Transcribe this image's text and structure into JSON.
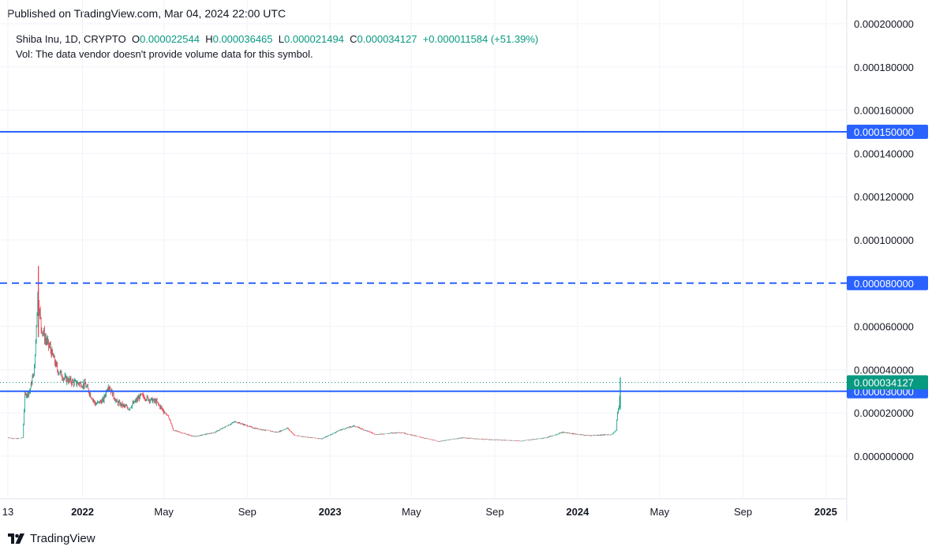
{
  "header": {
    "published": "Published on TradingView.com, Mar 04, 2024 22:00 UTC"
  },
  "legend": {
    "symbol": "Shiba Inu, 1D, CRYPTO",
    "o_label": "O",
    "o_value": "0.000022544",
    "h_label": "H",
    "h_value": "0.000036465",
    "l_label": "L",
    "l_value": "0.000021494",
    "c_label": "C",
    "c_value": "0.000034127",
    "change": "+0.000011584 (+51.39%)",
    "volume_note": "Vol: The data vendor doesn't provide volume data for this symbol."
  },
  "brand": {
    "name": "TradingView",
    "icon": "tradingview-logo-icon"
  },
  "colors": {
    "up": "#089981",
    "down": "#f23645",
    "level": "#2962ff",
    "grid": "#f0f3fa",
    "axis_text": "#131722"
  },
  "chart_data": {
    "type": "candlestick",
    "symbol": "Shiba Inu, 1D, CRYPTO",
    "x_range": [
      "2021-09-13",
      "2025-02-01"
    ],
    "x_ticks": [
      {
        "date": "2021-09-13",
        "label": "13"
      },
      {
        "date": "2022-01-01",
        "label": "2022"
      },
      {
        "date": "2022-05-01",
        "label": "May"
      },
      {
        "date": "2022-09-01",
        "label": "Sep"
      },
      {
        "date": "2023-01-01",
        "label": "2023"
      },
      {
        "date": "2023-05-01",
        "label": "May"
      },
      {
        "date": "2023-09-01",
        "label": "Sep"
      },
      {
        "date": "2024-01-01",
        "label": "2024"
      },
      {
        "date": "2024-05-01",
        "label": "May"
      },
      {
        "date": "2024-09-01",
        "label": "Sep"
      },
      {
        "date": "2025-01-01",
        "label": "2025"
      }
    ],
    "y_range": [
      -1.5e-05,
      0.0002
    ],
    "y_ticks": [
      0.0,
      2e-05,
      4e-05,
      6e-05,
      0.0001,
      0.00012,
      0.00014,
      0.00016,
      0.00018,
      0.0002
    ],
    "y_tick_labels": [
      "0.000000000",
      "0.000020000",
      "0.000040000",
      "0.000060000",
      "0.000100000",
      "0.000120000",
      "0.000140000",
      "0.000160000",
      "0.000180000",
      "0.000200000"
    ],
    "levels": [
      {
        "value": 0.00015,
        "label": "0.000150000",
        "style": "solid"
      },
      {
        "value": 8e-05,
        "label": "0.000080000",
        "style": "dashed"
      },
      {
        "value": 3e-05,
        "label": "0.000030000",
        "style": "solid"
      }
    ],
    "last_price": {
      "value": 3.4127e-05,
      "label": "0.000034127"
    },
    "grid": true,
    "price_path": [
      [
        "2021-09-13",
        8.6e-06
      ],
      [
        "2021-09-25",
        8e-06
      ],
      [
        "2021-10-05",
        8.5e-06
      ],
      [
        "2021-10-08",
        2.8e-05
      ],
      [
        "2021-10-15",
        3e-05
      ],
      [
        "2021-10-22",
        4e-05
      ],
      [
        "2021-10-27",
        7.5e-05
      ],
      [
        "2021-11-01",
        6e-05
      ],
      [
        "2021-11-06",
        5.5e-05
      ],
      [
        "2021-11-14",
        5e-05
      ],
      [
        "2021-11-25",
        4e-05
      ],
      [
        "2021-12-05",
        3.6e-05
      ],
      [
        "2021-12-20",
        3.4e-05
      ],
      [
        "2022-01-05",
        3.3e-05
      ],
      [
        "2022-01-20",
        2.4e-05
      ],
      [
        "2022-02-01",
        2.6e-05
      ],
      [
        "2022-02-08",
        3.3e-05
      ],
      [
        "2022-02-20",
        2.5e-05
      ],
      [
        "2022-03-10",
        2.2e-05
      ],
      [
        "2022-03-28",
        2.8e-05
      ],
      [
        "2022-04-20",
        2.5e-05
      ],
      [
        "2022-05-08",
        1.8e-05
      ],
      [
        "2022-05-15",
        1.2e-05
      ],
      [
        "2022-06-15",
        9e-06
      ],
      [
        "2022-07-15",
        1.1e-05
      ],
      [
        "2022-08-14",
        1.6e-05
      ],
      [
        "2022-09-10",
        1.3e-05
      ],
      [
        "2022-10-15",
        1.1e-05
      ],
      [
        "2022-10-30",
        1.3e-05
      ],
      [
        "2022-11-10",
        9.5e-06
      ],
      [
        "2022-12-20",
        8e-06
      ],
      [
        "2023-01-15",
        1.2e-05
      ],
      [
        "2023-02-05",
        1.4e-05
      ],
      [
        "2023-03-10",
        1e-05
      ],
      [
        "2023-04-15",
        1.1e-05
      ],
      [
        "2023-06-10",
        6.8e-06
      ],
      [
        "2023-07-15",
        8.5e-06
      ],
      [
        "2023-08-15",
        7.8e-06
      ],
      [
        "2023-10-10",
        7e-06
      ],
      [
        "2023-11-15",
        8.5e-06
      ],
      [
        "2023-12-10",
        1.1e-05
      ],
      [
        "2024-01-15",
        9.5e-06
      ],
      [
        "2024-02-20",
        1e-05
      ],
      [
        "2024-02-27",
        1.2e-05
      ],
      [
        "2024-02-29",
        2.1e-05
      ],
      [
        "2024-03-02",
        2.2e-05
      ],
      [
        "2024-03-04",
        3.4e-05
      ]
    ]
  }
}
